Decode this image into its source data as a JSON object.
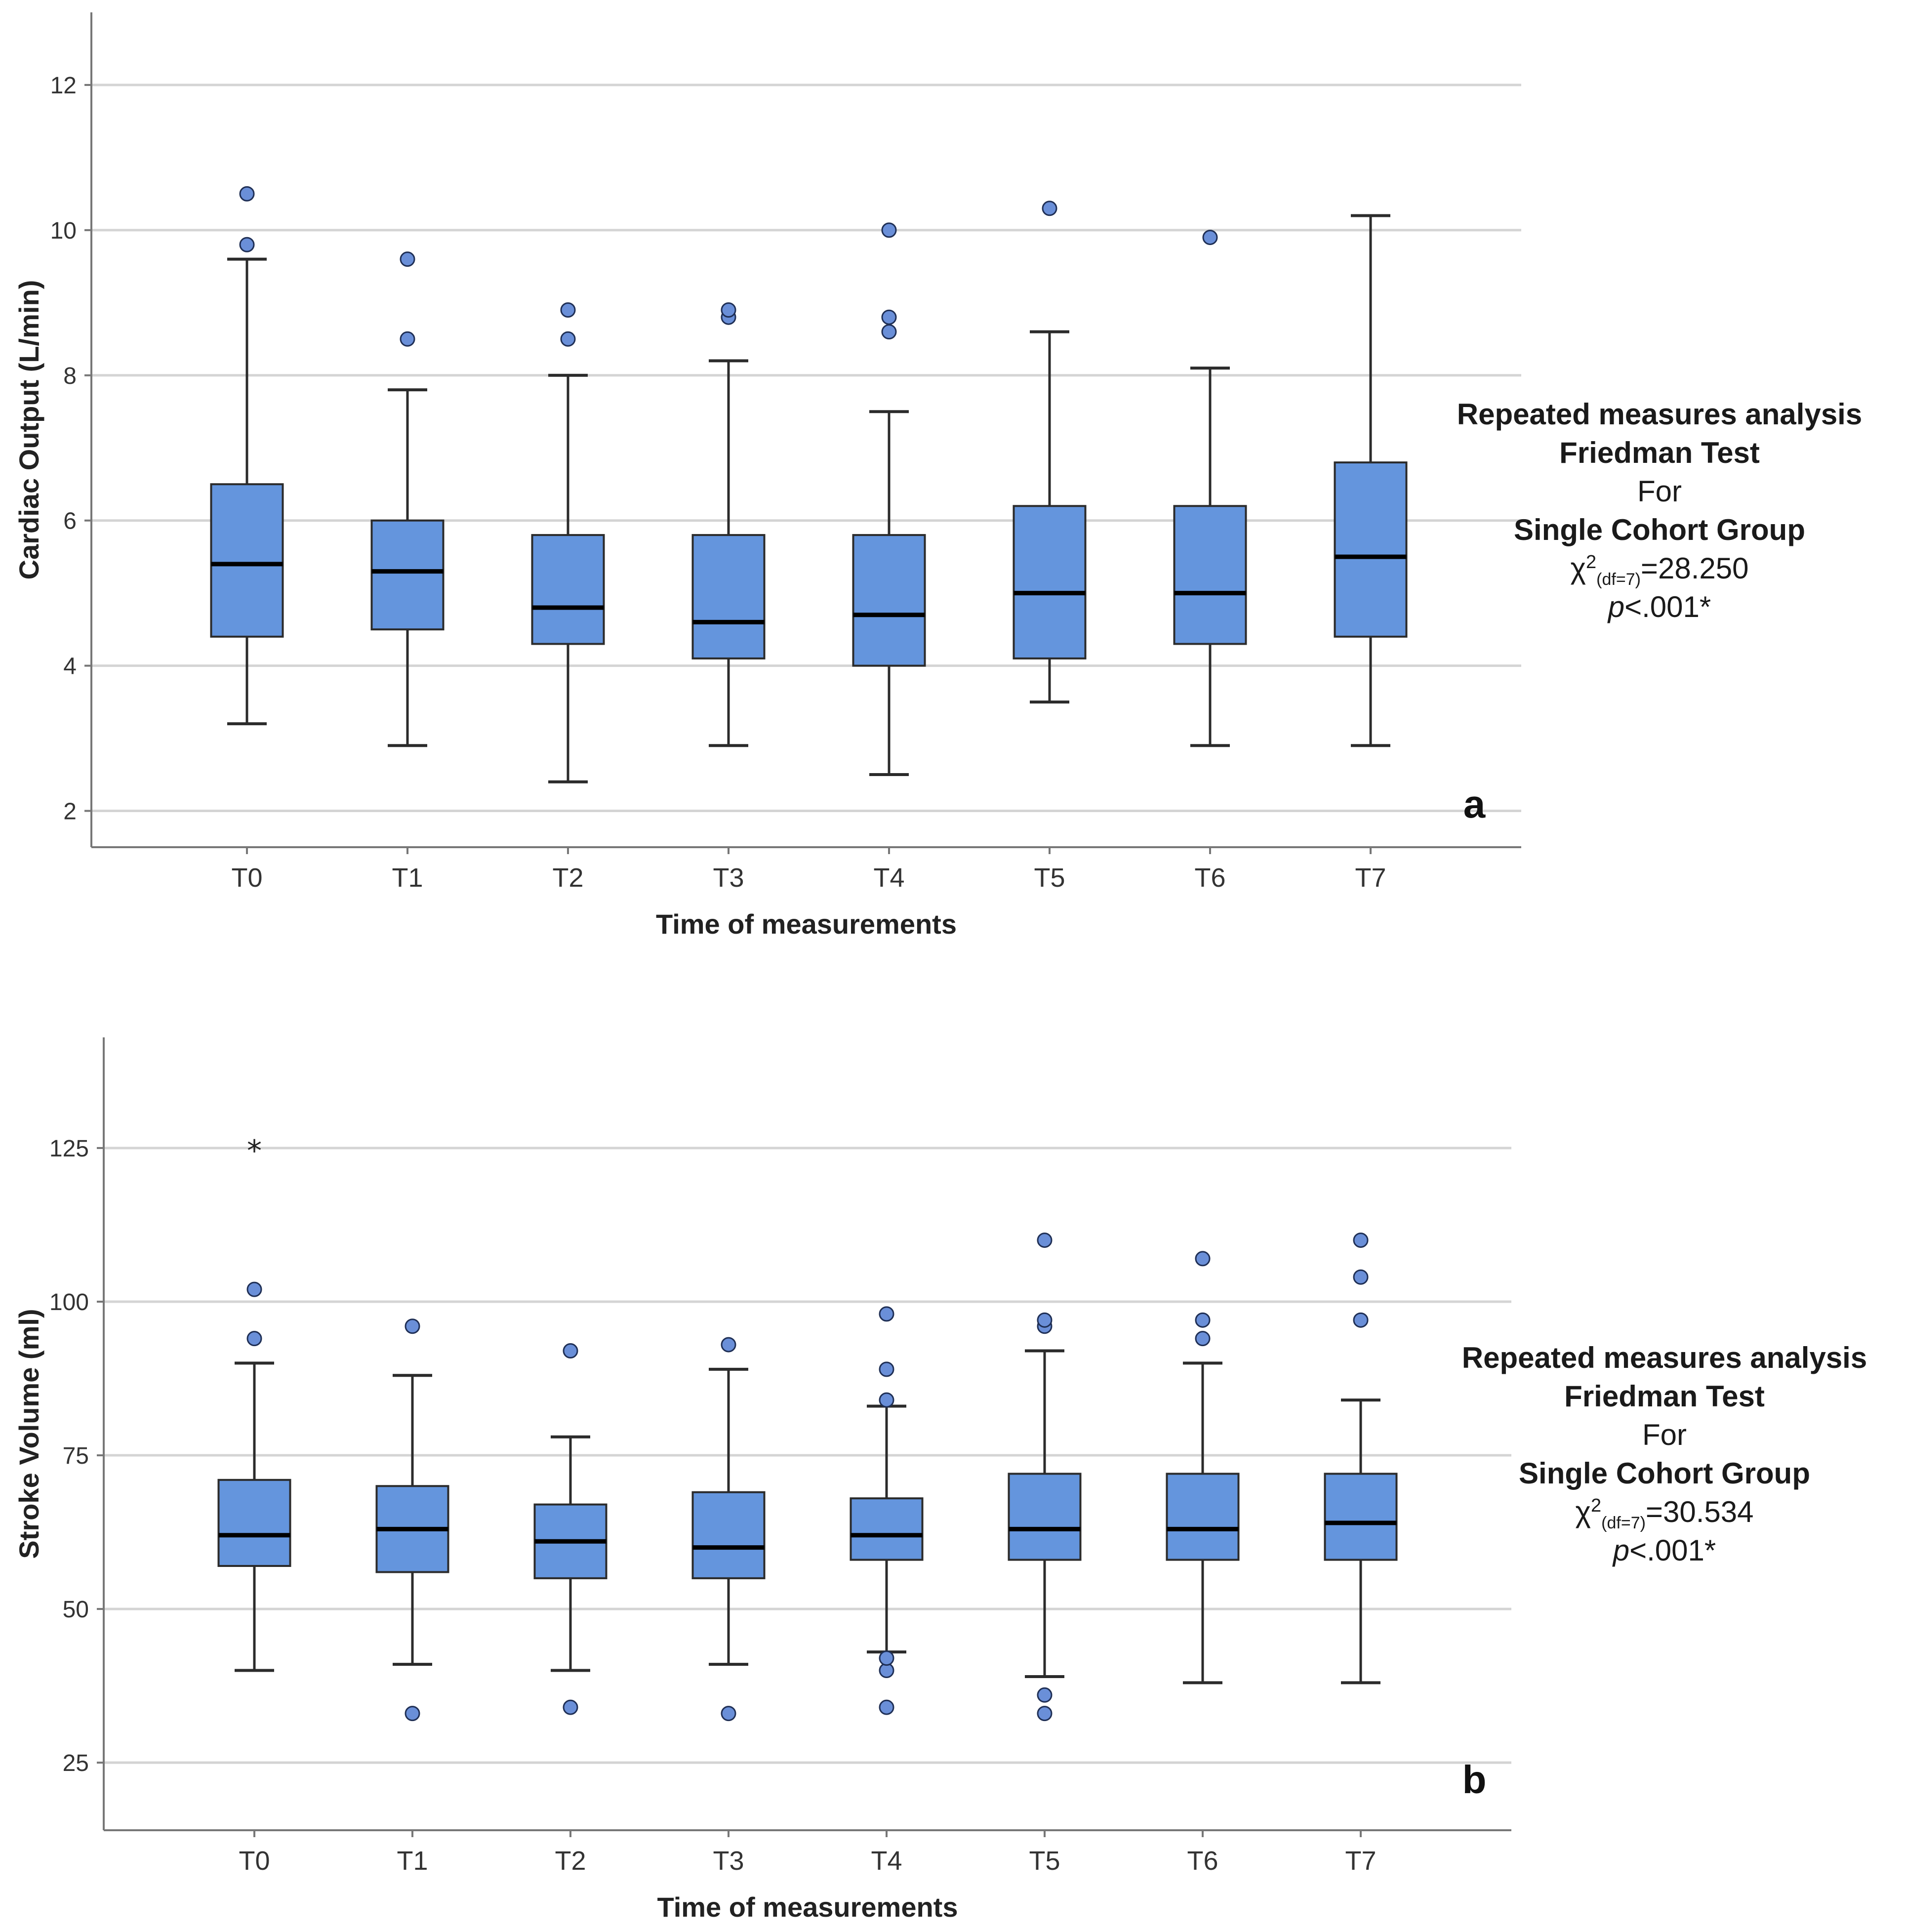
{
  "colors": {
    "box_fill": "#6495dd",
    "box_stroke": "#2b2b2b",
    "outlier_fill": "#6a8fd8",
    "grid": "#d4d4d4",
    "axis": "#777777"
  },
  "chart_data": [
    {
      "type": "boxplot",
      "panel": "a",
      "xlabel": "Time of measurements",
      "ylabel": "Cardiac Output (L/min)",
      "ylim": [
        1.5,
        13.0
      ],
      "yticks": [
        2,
        4,
        6,
        8,
        10,
        12
      ],
      "categories": [
        "T0",
        "T1",
        "T2",
        "T3",
        "T4",
        "T5",
        "T6",
        "T7"
      ],
      "boxes": [
        {
          "whisker_low": 3.2,
          "q1": 4.4,
          "median": 5.4,
          "q3": 6.5,
          "whisker_high": 9.6,
          "outliers": [
            9.8,
            10.5
          ]
        },
        {
          "whisker_low": 2.9,
          "q1": 4.5,
          "median": 5.3,
          "q3": 6.0,
          "whisker_high": 7.8,
          "outliers": [
            8.5,
            9.6
          ]
        },
        {
          "whisker_low": 2.4,
          "q1": 4.3,
          "median": 4.8,
          "q3": 5.8,
          "whisker_high": 8.0,
          "outliers": [
            8.5,
            8.9
          ]
        },
        {
          "whisker_low": 2.9,
          "q1": 4.1,
          "median": 4.6,
          "q3": 5.8,
          "whisker_high": 8.2,
          "outliers": [
            8.8,
            8.9
          ]
        },
        {
          "whisker_low": 2.5,
          "q1": 4.0,
          "median": 4.7,
          "q3": 5.8,
          "whisker_high": 7.5,
          "outliers": [
            8.6,
            8.8,
            10.0
          ]
        },
        {
          "whisker_low": 3.5,
          "q1": 4.1,
          "median": 5.0,
          "q3": 6.2,
          "whisker_high": 8.6,
          "outliers": [
            10.3
          ]
        },
        {
          "whisker_low": 2.9,
          "q1": 4.3,
          "median": 5.0,
          "q3": 6.2,
          "whisker_high": 8.1,
          "outliers": [
            9.9
          ]
        },
        {
          "whisker_low": 2.9,
          "q1": 4.4,
          "median": 5.5,
          "q3": 6.8,
          "whisker_high": 10.2,
          "outliers": []
        }
      ],
      "extremes": [
        [],
        [],
        [],
        [],
        [],
        [],
        [],
        []
      ],
      "annotation": {
        "line1": "Repeated measures analysis",
        "line2": "Friedman Test",
        "line3": "For",
        "line4": "Single Cohort Group",
        "chi_symbol": "χ",
        "chi_power": "2",
        "chi_df": "(df=7)",
        "chi_value": "=28.250",
        "p_letter": "p",
        "p_value": "<.001*"
      }
    },
    {
      "type": "boxplot",
      "panel": "b",
      "xlabel": "Time of measurements",
      "ylabel": "Stroke Volume (ml)",
      "ylim": [
        14,
        143
      ],
      "yticks": [
        25,
        50,
        75,
        100,
        125
      ],
      "categories": [
        "T0",
        "T1",
        "T2",
        "T3",
        "T4",
        "T5",
        "T6",
        "T7"
      ],
      "boxes": [
        {
          "whisker_low": 40,
          "q1": 57,
          "median": 62,
          "q3": 71,
          "whisker_high": 90,
          "outliers": [
            94,
            102
          ]
        },
        {
          "whisker_low": 41,
          "q1": 56,
          "median": 63,
          "q3": 70,
          "whisker_high": 88,
          "outliers": [
            33,
            96
          ]
        },
        {
          "whisker_low": 40,
          "q1": 55,
          "median": 61,
          "q3": 67,
          "whisker_high": 78,
          "outliers": [
            34,
            92
          ]
        },
        {
          "whisker_low": 41,
          "q1": 55,
          "median": 60,
          "q3": 69,
          "whisker_high": 89,
          "outliers": [
            33,
            93
          ]
        },
        {
          "whisker_low": 43,
          "q1": 58,
          "median": 62,
          "q3": 68,
          "whisker_high": 83,
          "outliers": [
            34,
            40,
            42,
            84,
            89,
            98
          ]
        },
        {
          "whisker_low": 39,
          "q1": 58,
          "median": 63,
          "q3": 72,
          "whisker_high": 92,
          "outliers": [
            33,
            36,
            96,
            97,
            110
          ]
        },
        {
          "whisker_low": 38,
          "q1": 58,
          "median": 63,
          "q3": 72,
          "whisker_high": 90,
          "outliers": [
            94,
            97,
            107
          ]
        },
        {
          "whisker_low": 38,
          "q1": 58,
          "median": 64,
          "q3": 72,
          "whisker_high": 84,
          "outliers": [
            97,
            104,
            110
          ]
        }
      ],
      "extremes": [
        [
          125
        ],
        [],
        [],
        [],
        [],
        [],
        [],
        []
      ],
      "annotation": {
        "line1": "Repeated measures analysis",
        "line2": "Friedman Test",
        "line3": "For",
        "line4": "Single Cohort Group",
        "chi_symbol": "χ",
        "chi_power": "2",
        "chi_df": "(df=7)",
        "chi_value": "=30.534",
        "p_letter": "p",
        "p_value": "<.001*"
      }
    }
  ]
}
